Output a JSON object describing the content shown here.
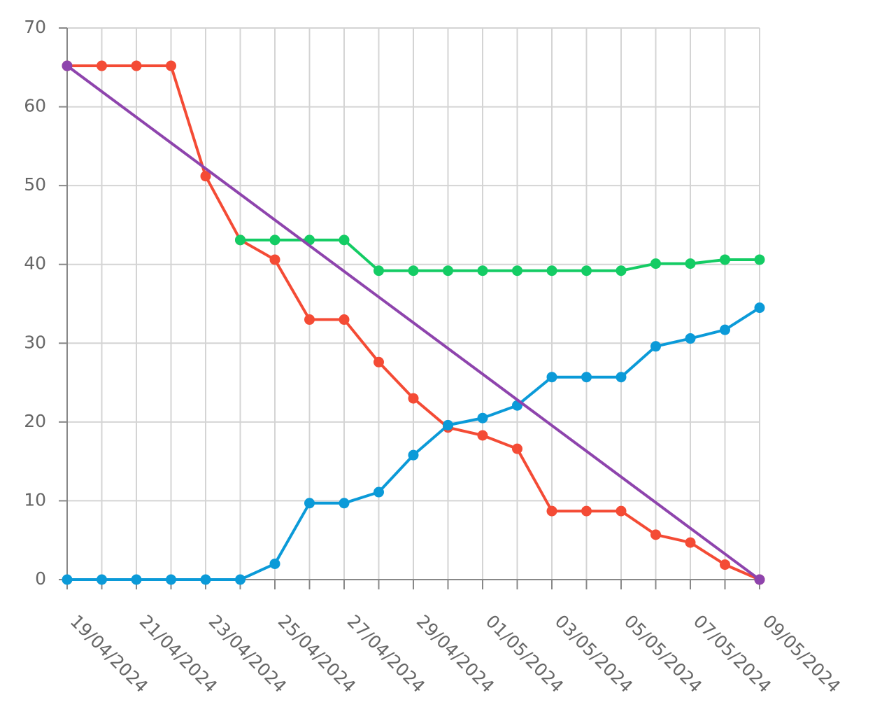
{
  "chart_data": {
    "type": "line",
    "categories": [
      "19/04/2024",
      null,
      "21/04/2024",
      null,
      "23/04/2024",
      null,
      "25/04/2024",
      null,
      "27/04/2024",
      null,
      "29/04/2024",
      null,
      "01/05/2024",
      null,
      "03/05/2024",
      null,
      "05/05/2024",
      null,
      "07/05/2024",
      null,
      "09/05/2024"
    ],
    "ylim": [
      0,
      70
    ],
    "yticks": [
      0,
      10,
      20,
      30,
      40,
      50,
      60,
      70
    ],
    "grid": true,
    "series": [
      {
        "color": "#f44b35",
        "values": [
          65.2,
          65.2,
          65.2,
          65.2,
          51.2,
          43.1,
          40.6,
          33.0,
          33.0,
          27.6,
          23.0,
          19.3,
          18.3,
          16.6,
          8.7,
          8.7,
          8.7,
          5.7,
          4.7,
          1.9,
          0
        ]
      },
      {
        "color": "#14cc64",
        "values": [
          null,
          null,
          null,
          null,
          null,
          43.1,
          43.1,
          43.1,
          43.1,
          39.2,
          39.2,
          39.2,
          39.2,
          39.2,
          39.2,
          39.2,
          39.2,
          40.1,
          40.1,
          40.6,
          40.6
        ]
      },
      {
        "color": "#0b9ad8",
        "values": [
          0,
          0,
          0,
          0,
          0,
          0,
          2.0,
          9.7,
          9.7,
          11.1,
          15.8,
          19.6,
          20.5,
          22.1,
          25.7,
          25.7,
          25.7,
          29.6,
          30.6,
          31.7,
          34.5
        ]
      },
      {
        "color": "#8e44ad",
        "markers": "ends",
        "values": [
          65.2,
          61.94,
          58.68,
          55.42,
          52.16,
          48.9,
          45.64,
          42.38,
          39.12,
          35.86,
          32.6,
          29.34,
          26.08,
          22.82,
          19.56,
          16.3,
          13.04,
          9.78,
          6.52,
          3.26,
          0
        ]
      }
    ]
  }
}
